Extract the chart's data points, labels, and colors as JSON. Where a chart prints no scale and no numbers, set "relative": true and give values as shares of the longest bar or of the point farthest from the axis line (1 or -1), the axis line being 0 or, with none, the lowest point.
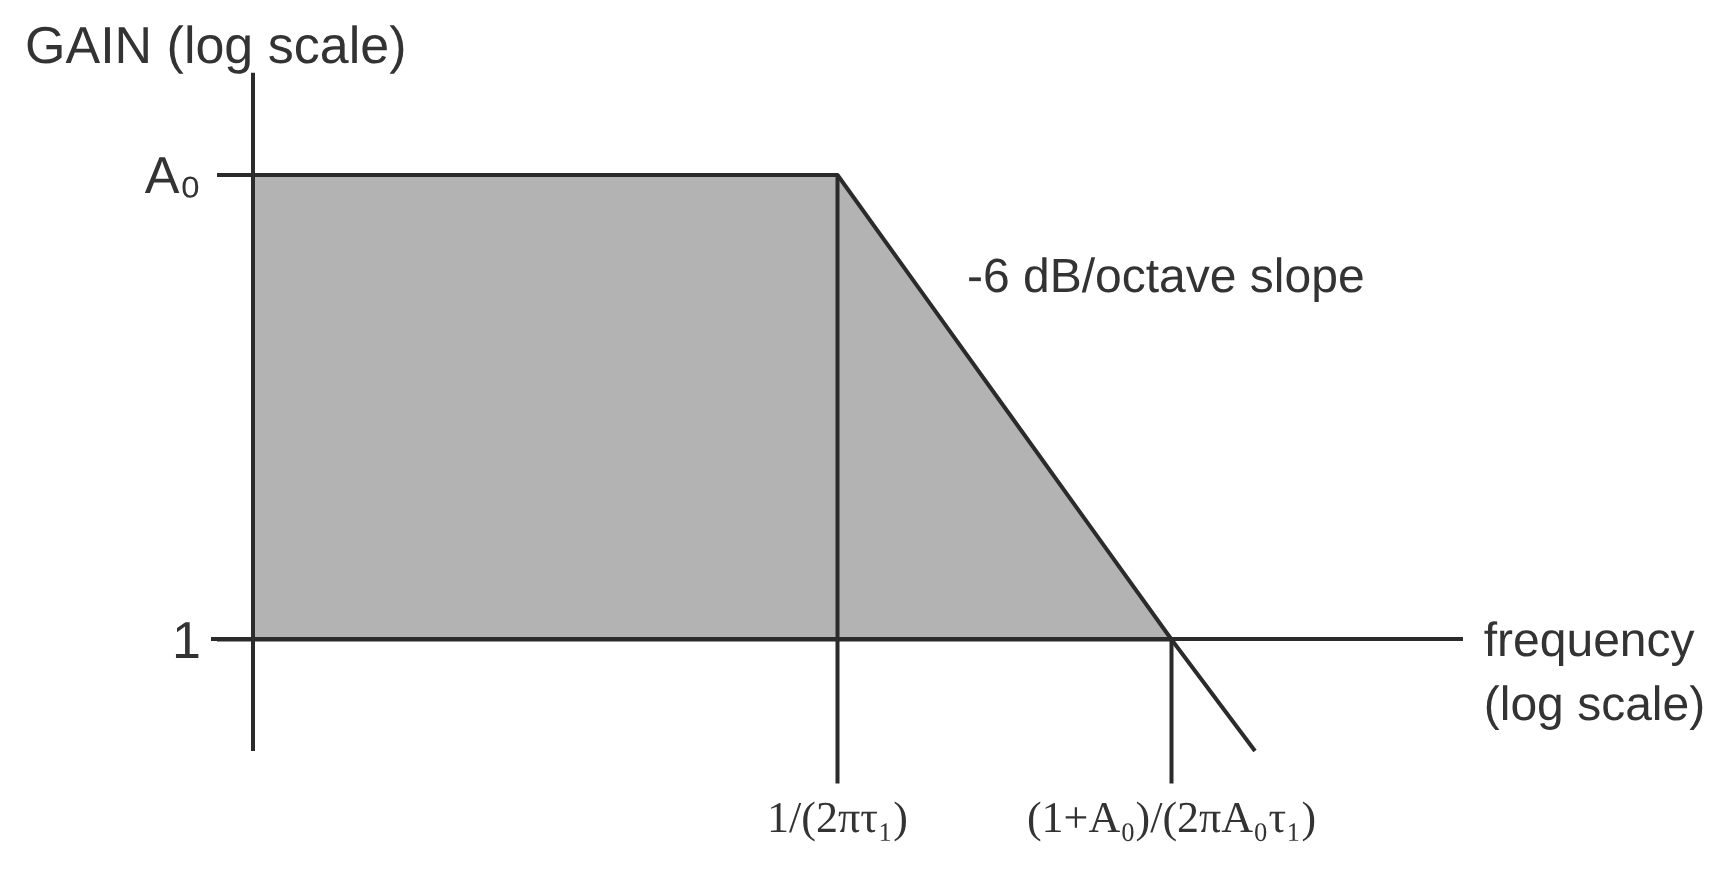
{
  "chart_data": {
    "type": "area",
    "relative": true,
    "ylabel": "GAIN (log scale)",
    "xlabel": "frequency\n(log scale)",
    "categories": [
      null,
      null,
      null,
      null,
      null,
      null,
      null,
      "1/(2πτ₁)",
      null,
      null,
      null,
      "(1+A₀)/(2πA₀τ₁)",
      null
    ],
    "line_style": "solid",
    "series": [
      {
        "color": "#b3b3b3",
        "values": [
          1,
          1,
          1,
          1,
          1,
          1,
          1,
          1,
          0.75,
          0.5,
          0.25,
          0,
          null
        ]
      },
      {
        "type": "line",
        "color": "#2b2b2b",
        "values": [
          null,
          null,
          null,
          null,
          null,
          null,
          null,
          null,
          null,
          null,
          null,
          0,
          -0.24
        ]
      }
    ],
    "ref_lines": [
      {
        "axis": "x",
        "value": "1/(2πτ₁)",
        "color": "#2b2b2b"
      },
      {
        "axis": "x",
        "value": "(1+A₀)/(2πA₀τ₁)",
        "color": "#2b2b2b"
      }
    ],
    "annotations": [
      "A₀",
      "1",
      "-6 dB/octave slope"
    ]
  }
}
